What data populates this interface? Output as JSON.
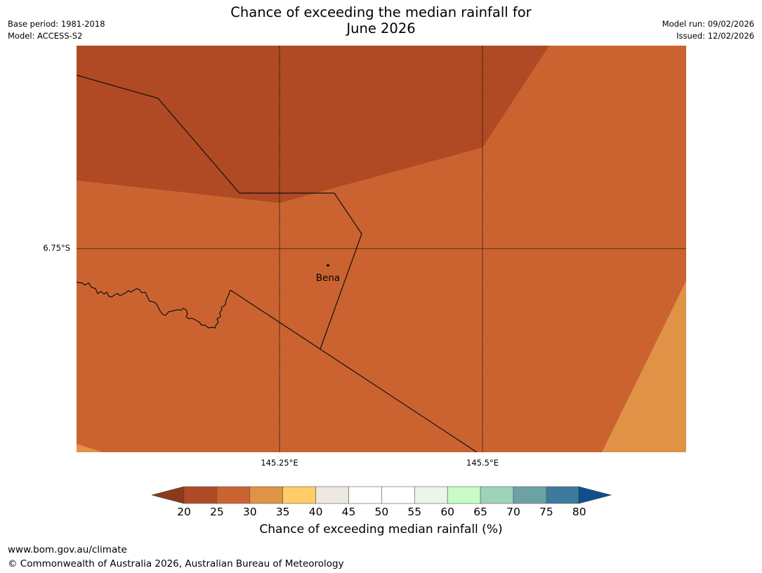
{
  "title": {
    "line1": "Chance of exceeding the median rainfall for",
    "line2": "June 2026"
  },
  "meta": {
    "base_period": "Base period: 1981-2018",
    "model": "Model: ACCESS-S2",
    "model_run": "Model run: 09/02/2026",
    "issued": "Issued: 12/02/2026"
  },
  "map": {
    "latitude_label": "6.75°S",
    "longitude_labels": [
      "145.25°E",
      "145.5°E"
    ],
    "place": "Bena",
    "colors": {
      "band_20_25": "#b04a24",
      "band_25_30": "#cb6331",
      "band_30_35": "#e09246"
    }
  },
  "colorbar": {
    "ticks": [
      "20",
      "25",
      "30",
      "35",
      "40",
      "45",
      "50",
      "55",
      "60",
      "65",
      "70",
      "75",
      "80"
    ],
    "under_color": "#8b3a1c",
    "over_color": "#0f4f8c",
    "colors": [
      "#b04a24",
      "#cb6331",
      "#e09246",
      "#ffcc66",
      "#ede8e2",
      "#ffffff",
      "#ffffff",
      "#eaf6ea",
      "#c7fcc7",
      "#9dd3b9",
      "#6da2a5",
      "#3d7a9c"
    ],
    "label": "Chance of exceeding median rainfall (%)"
  },
  "footer": {
    "url": "www.bom.gov.au/climate",
    "copyright": "© Commonwealth of Australia 2026, Australian Bureau of Meteorology"
  }
}
